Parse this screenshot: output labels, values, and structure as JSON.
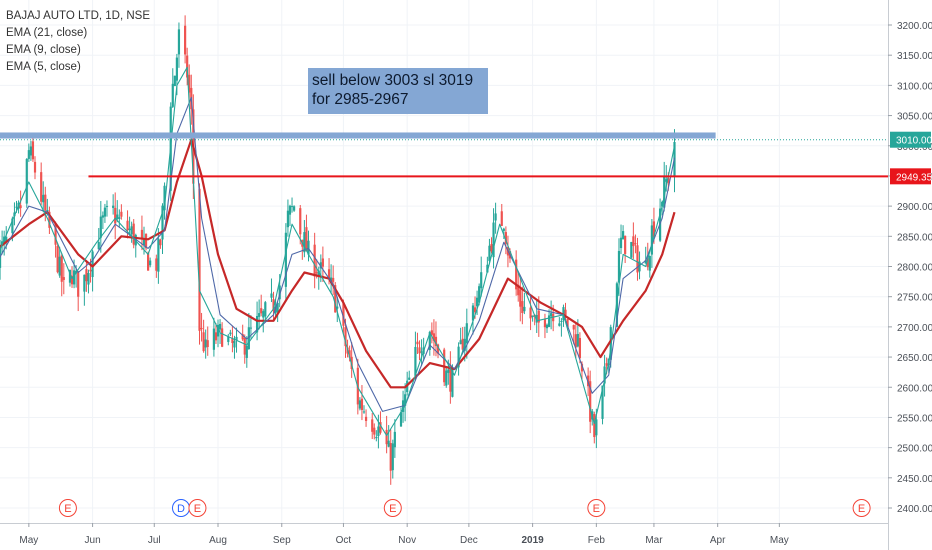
{
  "legend": {
    "symbol": "BAJAJ AUTO LTD, 1D, NSE",
    "ema21": "EMA (21, close)",
    "ema9": "EMA (9, close)",
    "ema5": "EMA (5, close)"
  },
  "annotation": {
    "line1": "sell below 3003 sl 3019",
    "line2": "for 2985-2967"
  },
  "colors": {
    "up": "#26a69a",
    "down": "#ef5350",
    "ema21": "#c62828",
    "ema9": "#4e68a8",
    "ema5": "#26a69a",
    "zone": "#84a7d4",
    "support_line": "#e8151b"
  },
  "chart_data": {
    "type": "candlestick",
    "y_axis": {
      "ylim": [
        2390,
        3230
      ],
      "ticks": [
        2400,
        2450,
        2500,
        2550,
        2600,
        2650,
        2700,
        2750,
        2800,
        2850,
        2900,
        2950,
        3000,
        3050,
        3100,
        3150,
        3200
      ]
    },
    "x_axis": {
      "range": [
        "2018-04-16",
        "2019-06-17"
      ],
      "ticks": [
        {
          "date": "2018-05-01",
          "label": "May",
          "bold": false
        },
        {
          "date": "2018-06-01",
          "label": "Jun",
          "bold": false
        },
        {
          "date": "2018-07-01",
          "label": "Jul",
          "bold": false
        },
        {
          "date": "2018-08-01",
          "label": "Aug",
          "bold": false
        },
        {
          "date": "2018-09-01",
          "label": "Sep",
          "bold": false
        },
        {
          "date": "2018-10-01",
          "label": "Oct",
          "bold": false
        },
        {
          "date": "2018-11-01",
          "label": "Nov",
          "bold": false
        },
        {
          "date": "2018-12-01",
          "label": "Dec",
          "bold": false
        },
        {
          "date": "2019-01-01",
          "label": "2019",
          "bold": true
        },
        {
          "date": "2019-02-01",
          "label": "Feb",
          "bold": false
        },
        {
          "date": "2019-03-01",
          "label": "Mar",
          "bold": false
        },
        {
          "date": "2019-04-01",
          "label": "Apr",
          "bold": false
        },
        {
          "date": "2019-05-01",
          "label": "May",
          "bold": false
        }
      ]
    },
    "price_labels": [
      {
        "value": 3010.0,
        "label": "3010.00",
        "kind": "last"
      },
      {
        "value": 2949.35,
        "label": "2949.35",
        "kind": "support"
      }
    ],
    "horizontal_lines": [
      {
        "name": "sell zone",
        "y": [
          3012,
          3022
        ],
        "x_start": "2018-04-16",
        "x_end": "2019-03-31"
      },
      {
        "name": "red line",
        "y": 2949.35,
        "x_start": "2018-05-30",
        "x_end": "2019-06-17"
      }
    ],
    "events": [
      {
        "date": "2018-05-20",
        "label": "E"
      },
      {
        "date": "2018-07-14",
        "label": "D"
      },
      {
        "date": "2018-07-22",
        "label": "E"
      },
      {
        "date": "2018-10-25",
        "label": "E"
      },
      {
        "date": "2019-02-01",
        "label": "E"
      },
      {
        "date": "2019-06-10",
        "label": "E"
      }
    ],
    "close_path": [
      [
        "2018-04-16",
        2820
      ],
      [
        "2018-04-22",
        2850
      ],
      [
        "2018-04-27",
        2900
      ],
      [
        "2018-05-01",
        2990
      ],
      [
        "2018-05-04",
        2960
      ],
      [
        "2018-05-08",
        2900
      ],
      [
        "2018-05-11",
        2860
      ],
      [
        "2018-05-15",
        2810
      ],
      [
        "2018-05-18",
        2760
      ],
      [
        "2018-05-22",
        2790
      ],
      [
        "2018-05-26",
        2760
      ],
      [
        "2018-05-30",
        2800
      ],
      [
        "2018-06-03",
        2850
      ],
      [
        "2018-06-07",
        2880
      ],
      [
        "2018-06-11",
        2890
      ],
      [
        "2018-06-15",
        2870
      ],
      [
        "2018-06-19",
        2860
      ],
      [
        "2018-06-23",
        2840
      ],
      [
        "2018-06-27",
        2820
      ],
      [
        "2018-07-01",
        2790
      ],
      [
        "2018-07-04",
        2840
      ],
      [
        "2018-07-07",
        2980
      ],
      [
        "2018-07-09",
        3080
      ],
      [
        "2018-07-11",
        3120
      ],
      [
        "2018-07-13",
        3180
      ],
      [
        "2018-07-15",
        3140
      ],
      [
        "2018-07-17",
        3120
      ],
      [
        "2018-07-19",
        3050
      ],
      [
        "2018-07-21",
        2830
      ],
      [
        "2018-07-23",
        2700
      ],
      [
        "2018-07-26",
        2660
      ],
      [
        "2018-07-30",
        2680
      ],
      [
        "2018-08-03",
        2690
      ],
      [
        "2018-08-07",
        2670
      ],
      [
        "2018-08-11",
        2660
      ],
      [
        "2018-08-15",
        2680
      ],
      [
        "2018-08-19",
        2700
      ],
      [
        "2018-08-24",
        2720
      ],
      [
        "2018-08-28",
        2740
      ],
      [
        "2018-09-01",
        2780
      ],
      [
        "2018-09-04",
        2880
      ],
      [
        "2018-09-07",
        2900
      ],
      [
        "2018-09-10",
        2860
      ],
      [
        "2018-09-14",
        2820
      ],
      [
        "2018-09-18",
        2800
      ],
      [
        "2018-09-22",
        2780
      ],
      [
        "2018-09-26",
        2760
      ],
      [
        "2018-09-30",
        2700
      ],
      [
        "2018-10-04",
        2640
      ],
      [
        "2018-10-08",
        2580
      ],
      [
        "2018-10-12",
        2560
      ],
      [
        "2018-10-16",
        2540
      ],
      [
        "2018-10-20",
        2520
      ],
      [
        "2018-10-24",
        2480
      ],
      [
        "2018-10-27",
        2530
      ],
      [
        "2018-10-31",
        2580
      ],
      [
        "2018-11-04",
        2640
      ],
      [
        "2018-11-08",
        2680
      ],
      [
        "2018-11-12",
        2700
      ],
      [
        "2018-11-16",
        2660
      ],
      [
        "2018-11-20",
        2620
      ],
      [
        "2018-11-24",
        2610
      ],
      [
        "2018-11-28",
        2680
      ],
      [
        "2018-12-02",
        2720
      ],
      [
        "2018-12-06",
        2760
      ],
      [
        "2018-12-10",
        2820
      ],
      [
        "2018-12-14",
        2870
      ],
      [
        "2018-12-18",
        2880
      ],
      [
        "2018-12-22",
        2780
      ],
      [
        "2018-12-26",
        2740
      ],
      [
        "2018-12-30",
        2720
      ],
      [
        "2019-01-03",
        2700
      ],
      [
        "2019-01-07",
        2720
      ],
      [
        "2019-01-11",
        2730
      ],
      [
        "2019-01-15",
        2720
      ],
      [
        "2019-01-19",
        2700
      ],
      [
        "2019-01-23",
        2680
      ],
      [
        "2019-01-27",
        2600
      ],
      [
        "2019-01-31",
        2520
      ],
      [
        "2019-02-03",
        2560
      ],
      [
        "2019-02-06",
        2640
      ],
      [
        "2019-02-10",
        2760
      ],
      [
        "2019-02-13",
        2840
      ],
      [
        "2019-02-17",
        2840
      ],
      [
        "2019-02-21",
        2810
      ],
      [
        "2019-02-25",
        2800
      ],
      [
        "2019-02-28",
        2860
      ],
      [
        "2019-03-03",
        2890
      ],
      [
        "2019-03-06",
        2930
      ],
      [
        "2019-03-09",
        2960
      ],
      [
        "2019-03-11",
        3010
      ]
    ],
    "ema_series": [
      {
        "name": "EMA (21, close)",
        "values": [
          [
            "2018-04-16",
            2830
          ],
          [
            "2018-05-01",
            2870
          ],
          [
            "2018-05-10",
            2890
          ],
          [
            "2018-05-25",
            2820
          ],
          [
            "2018-06-01",
            2800
          ],
          [
            "2018-06-15",
            2850
          ],
          [
            "2018-06-28",
            2845
          ],
          [
            "2018-07-06",
            2860
          ],
          [
            "2018-07-12",
            2940
          ],
          [
            "2018-07-19",
            3010
          ],
          [
            "2018-07-24",
            2950
          ],
          [
            "2018-08-01",
            2820
          ],
          [
            "2018-08-10",
            2730
          ],
          [
            "2018-08-20",
            2710
          ],
          [
            "2018-08-28",
            2710
          ],
          [
            "2018-09-06",
            2760
          ],
          [
            "2018-09-12",
            2790
          ],
          [
            "2018-09-24",
            2780
          ],
          [
            "2018-10-01",
            2740
          ],
          [
            "2018-10-12",
            2660
          ],
          [
            "2018-10-24",
            2600
          ],
          [
            "2018-10-31",
            2600
          ],
          [
            "2018-11-12",
            2640
          ],
          [
            "2018-11-24",
            2630
          ],
          [
            "2018-12-06",
            2680
          ],
          [
            "2018-12-20",
            2780
          ],
          [
            "2019-01-05",
            2740
          ],
          [
            "2019-01-16",
            2720
          ],
          [
            "2019-01-25",
            2700
          ],
          [
            "2019-02-03",
            2650
          ],
          [
            "2019-02-14",
            2710
          ],
          [
            "2019-02-25",
            2760
          ],
          [
            "2019-03-05",
            2820
          ],
          [
            "2019-03-11",
            2890
          ]
        ]
      },
      {
        "name": "EMA (9, close)",
        "values": [
          [
            "2018-04-16",
            2810
          ],
          [
            "2018-05-01",
            2900
          ],
          [
            "2018-05-10",
            2890
          ],
          [
            "2018-05-25",
            2790
          ],
          [
            "2018-06-01",
            2810
          ],
          [
            "2018-06-12",
            2870
          ],
          [
            "2018-06-28",
            2830
          ],
          [
            "2018-07-06",
            2860
          ],
          [
            "2018-07-12",
            3020
          ],
          [
            "2018-07-19",
            3080
          ],
          [
            "2018-07-24",
            2880
          ],
          [
            "2018-08-02",
            2720
          ],
          [
            "2018-08-15",
            2680
          ],
          [
            "2018-08-28",
            2720
          ],
          [
            "2018-09-06",
            2820
          ],
          [
            "2018-09-14",
            2830
          ],
          [
            "2018-09-26",
            2770
          ],
          [
            "2018-10-08",
            2640
          ],
          [
            "2018-10-20",
            2560
          ],
          [
            "2018-10-31",
            2570
          ],
          [
            "2018-11-12",
            2670
          ],
          [
            "2018-11-24",
            2630
          ],
          [
            "2018-12-06",
            2710
          ],
          [
            "2018-12-18",
            2840
          ],
          [
            "2019-01-03",
            2730
          ],
          [
            "2019-01-16",
            2720
          ],
          [
            "2019-01-30",
            2590
          ],
          [
            "2019-02-07",
            2620
          ],
          [
            "2019-02-14",
            2780
          ],
          [
            "2019-02-25",
            2810
          ],
          [
            "2019-03-05",
            2880
          ],
          [
            "2019-03-11",
            2980
          ]
        ]
      },
      {
        "name": "EMA (5, close)",
        "values": [
          [
            "2018-04-16",
            2820
          ],
          [
            "2018-05-01",
            2940
          ],
          [
            "2018-05-10",
            2880
          ],
          [
            "2018-05-22",
            2780
          ],
          [
            "2018-06-03",
            2840
          ],
          [
            "2018-06-12",
            2880
          ],
          [
            "2018-06-28",
            2820
          ],
          [
            "2018-07-06",
            2900
          ],
          [
            "2018-07-12",
            3100
          ],
          [
            "2018-07-17",
            3130
          ],
          [
            "2018-07-23",
            2760
          ],
          [
            "2018-08-02",
            2690
          ],
          [
            "2018-08-15",
            2670
          ],
          [
            "2018-08-28",
            2730
          ],
          [
            "2018-09-06",
            2870
          ],
          [
            "2018-09-14",
            2820
          ],
          [
            "2018-09-26",
            2750
          ],
          [
            "2018-10-08",
            2600
          ],
          [
            "2018-10-22",
            2520
          ],
          [
            "2018-10-31",
            2570
          ],
          [
            "2018-11-12",
            2690
          ],
          [
            "2018-11-24",
            2620
          ],
          [
            "2018-12-06",
            2740
          ],
          [
            "2018-12-16",
            2870
          ],
          [
            "2019-01-03",
            2710
          ],
          [
            "2019-01-16",
            2720
          ],
          [
            "2019-01-31",
            2540
          ],
          [
            "2019-02-07",
            2640
          ],
          [
            "2019-02-14",
            2820
          ],
          [
            "2019-02-25",
            2800
          ],
          [
            "2019-03-05",
            2900
          ],
          [
            "2019-03-11",
            3000
          ]
        ]
      }
    ]
  }
}
